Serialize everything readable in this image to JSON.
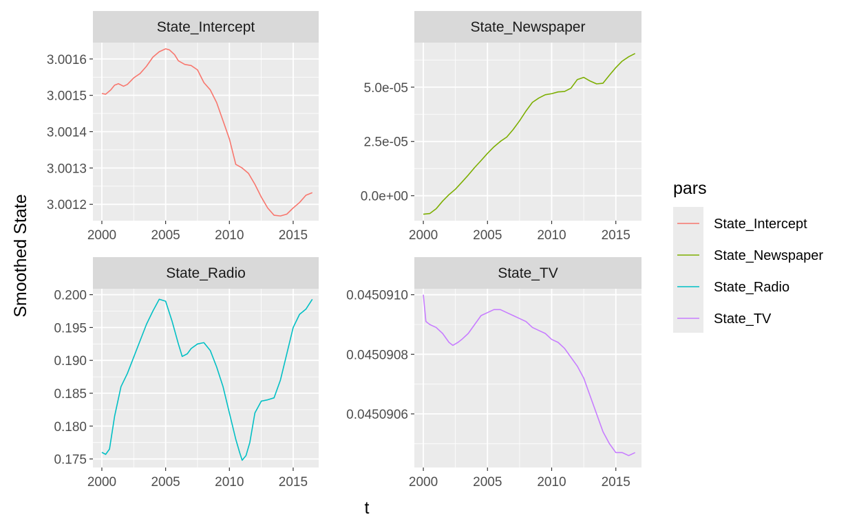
{
  "chart_data": {
    "type": "line",
    "xlabel": "t",
    "ylabel": "Smoothed State",
    "legend": {
      "title": "pars",
      "position": "right"
    },
    "grid": true,
    "x_ticks": [
      2000,
      2005,
      2010,
      2015
    ],
    "xlim": [
      1999.3,
      2017.0
    ],
    "panels": [
      {
        "name": "State_Intercept",
        "color": "#F8766D",
        "ylim": [
          3.001155,
          3.001645
        ],
        "y_ticks": [
          3.0012,
          3.0013,
          3.0014,
          3.0015,
          3.0016
        ],
        "y_tick_labels": [
          "3.0012",
          "3.0013",
          "3.0014",
          "3.0015",
          "3.0016"
        ],
        "x": [
          2000.0,
          2000.3,
          2000.7,
          2001.0,
          2001.3,
          2001.7,
          2002.0,
          2002.5,
          2003.0,
          2003.5,
          2004.0,
          2004.5,
          2005.0,
          2005.3,
          2005.7,
          2006.0,
          2006.5,
          2007.0,
          2007.5,
          2008.0,
          2008.5,
          2009.0,
          2009.5,
          2010.0,
          2010.5,
          2011.0,
          2011.5,
          2012.0,
          2012.5,
          2013.0,
          2013.5,
          2014.0,
          2014.5,
          2015.0,
          2015.5,
          2016.0,
          2016.5
        ],
        "y": [
          3.001505,
          3.001503,
          3.001515,
          3.001528,
          3.001532,
          3.001525,
          3.00153,
          3.001548,
          3.00156,
          3.00158,
          3.001605,
          3.00162,
          3.001628,
          3.001625,
          3.001612,
          3.001595,
          3.001585,
          3.001582,
          3.00157,
          3.001535,
          3.001515,
          3.00148,
          3.00143,
          3.00138,
          3.00131,
          3.0013,
          3.001285,
          3.001255,
          3.00122,
          3.00119,
          3.00117,
          3.001168,
          3.001173,
          3.00119,
          3.001205,
          3.001225,
          3.001232
        ]
      },
      {
        "name": "State_Newspaper",
        "color": "#7CAE00",
        "ylim": [
          -1.15e-05,
          7.05e-05
        ],
        "y_ticks": [
          0,
          2.5e-05,
          5e-05
        ],
        "y_tick_labels": [
          "0.0e+00",
          "2.5e-05",
          "5.0e-05"
        ],
        "x": [
          2000.0,
          2000.5,
          2001.0,
          2001.5,
          2002.0,
          2002.5,
          2003.0,
          2003.5,
          2004.0,
          2004.5,
          2005.0,
          2005.5,
          2006.0,
          2006.5,
          2007.0,
          2007.5,
          2008.0,
          2008.5,
          2009.0,
          2009.5,
          2010.0,
          2010.5,
          2011.0,
          2011.5,
          2012.0,
          2012.5,
          2013.0,
          2013.5,
          2014.0,
          2014.5,
          2015.0,
          2015.5,
          2016.0,
          2016.5
        ],
        "y": [
          -8.5e-06,
          -8.2e-06,
          -6e-06,
          -2.5e-06,
          5e-07,
          3e-06,
          6.2e-06,
          9.5e-06,
          1.3e-05,
          1.62e-05,
          1.95e-05,
          2.25e-05,
          2.5e-05,
          2.7e-05,
          3.05e-05,
          3.45e-05,
          3.9e-05,
          4.3e-05,
          4.5e-05,
          4.65e-05,
          4.7e-05,
          4.78e-05,
          4.8e-05,
          4.95e-05,
          5.35e-05,
          5.45e-05,
          5.28e-05,
          5.15e-05,
          5.18e-05,
          5.55e-05,
          5.9e-05,
          6.2e-05,
          6.4e-05,
          6.55e-05
        ]
      },
      {
        "name": "State_Radio",
        "color": "#00BFC4",
        "ylim": [
          0.1737,
          0.2009
        ],
        "y_ticks": [
          0.175,
          0.18,
          0.185,
          0.19,
          0.195,
          0.2
        ],
        "y_tick_labels": [
          "0.175",
          "0.180",
          "0.185",
          "0.190",
          "0.195",
          "0.200"
        ],
        "x": [
          2000.0,
          2000.3,
          2000.6,
          2001.0,
          2001.5,
          2002.0,
          2002.5,
          2003.0,
          2003.5,
          2004.0,
          2004.5,
          2005.0,
          2005.5,
          2006.0,
          2006.3,
          2006.7,
          2007.0,
          2007.5,
          2008.0,
          2008.5,
          2009.0,
          2009.5,
          2010.0,
          2010.5,
          2010.8,
          2011.0,
          2011.3,
          2011.6,
          2012.0,
          2012.5,
          2013.0,
          2013.5,
          2014.0,
          2014.5,
          2015.0,
          2015.5,
          2016.0,
          2016.5
        ],
        "y": [
          0.176,
          0.1757,
          0.1765,
          0.1815,
          0.186,
          0.188,
          0.1905,
          0.193,
          0.1955,
          0.1975,
          0.1993,
          0.199,
          0.196,
          0.1925,
          0.1906,
          0.191,
          0.1918,
          0.1925,
          0.1927,
          0.1915,
          0.189,
          0.186,
          0.182,
          0.178,
          0.176,
          0.1748,
          0.1755,
          0.1775,
          0.182,
          0.1838,
          0.184,
          0.1843,
          0.187,
          0.191,
          0.195,
          0.197,
          0.1978,
          0.1993
        ]
      },
      {
        "name": "State_TV",
        "color": "#C77CFF",
        "ylim": [
          0.04509042,
          0.04509102
        ],
        "y_ticks": [
          0.0450906,
          0.0450908,
          0.045091
        ],
        "y_tick_labels": [
          "0.0450906",
          "0.0450908",
          "0.0450910"
        ],
        "x": [
          2000.0,
          2000.2,
          2000.5,
          2001.0,
          2001.5,
          2002.0,
          2002.3,
          2002.7,
          2003.0,
          2003.5,
          2004.0,
          2004.5,
          2005.0,
          2005.5,
          2006.0,
          2006.5,
          2007.0,
          2007.5,
          2008.0,
          2008.5,
          2009.0,
          2009.5,
          2010.0,
          2010.5,
          2011.0,
          2011.5,
          2012.0,
          2012.5,
          2013.0,
          2013.5,
          2014.0,
          2014.5,
          2015.0,
          2015.5,
          2016.0,
          2016.5
        ],
        "y": [
          0.045091,
          0.04509091,
          0.0450909,
          0.04509089,
          0.04509087,
          0.04509084,
          0.04509083,
          0.04509084,
          0.04509085,
          0.04509087,
          0.0450909,
          0.04509093,
          0.04509094,
          0.04509095,
          0.04509095,
          0.04509094,
          0.04509093,
          0.04509092,
          0.04509091,
          0.04509089,
          0.04509088,
          0.04509087,
          0.04509085,
          0.04509084,
          0.04509082,
          0.04509079,
          0.04509076,
          0.04509072,
          0.04509066,
          0.0450906,
          0.04509054,
          0.0450905,
          0.04509047,
          0.04509047,
          0.04509046,
          0.04509047
        ]
      }
    ]
  }
}
